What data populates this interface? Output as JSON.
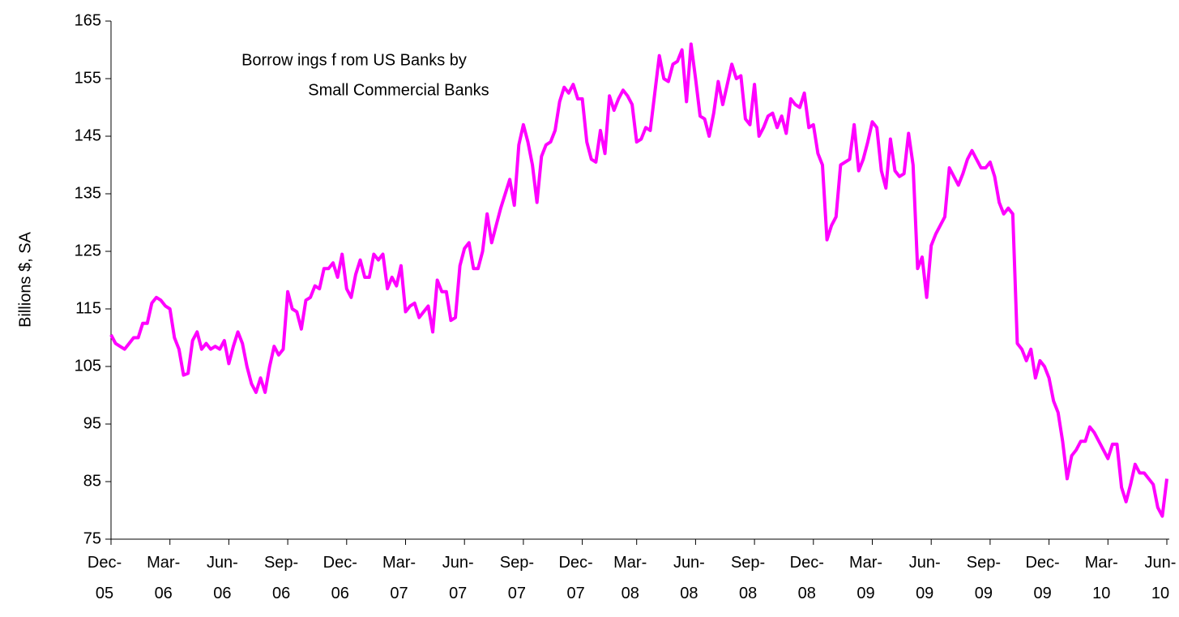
{
  "chart_data": {
    "type": "line",
    "title": [
      "Borrow ings f rom US Banks by",
      "Small Commercial Banks"
    ],
    "y_label": "Billions $, SA",
    "categories": [
      "Dec-05",
      null,
      null,
      null,
      null,
      null,
      null,
      null,
      null,
      null,
      null,
      null,
      null,
      "Mar-06",
      null,
      null,
      null,
      null,
      null,
      null,
      null,
      null,
      null,
      null,
      null,
      null,
      "Jun-06",
      null,
      null,
      null,
      null,
      null,
      null,
      null,
      null,
      null,
      null,
      null,
      null,
      "Sep-06",
      null,
      null,
      null,
      null,
      null,
      null,
      null,
      null,
      null,
      null,
      null,
      null,
      "Dec-06",
      null,
      null,
      null,
      null,
      null,
      null,
      null,
      null,
      null,
      null,
      null,
      null,
      "Mar-07",
      null,
      null,
      null,
      null,
      null,
      null,
      null,
      null,
      null,
      null,
      null,
      null,
      "Jun-07",
      null,
      null,
      null,
      null,
      null,
      null,
      null,
      null,
      null,
      null,
      null,
      null,
      "Sep-07",
      null,
      null,
      null,
      null,
      null,
      null,
      null,
      null,
      null,
      null,
      null,
      null,
      "Dec-07",
      null,
      null,
      null,
      null,
      null,
      null,
      null,
      null,
      null,
      null,
      null,
      "Mar-08",
      null,
      null,
      null,
      null,
      null,
      null,
      null,
      null,
      null,
      null,
      null,
      null,
      "Jun-08",
      null,
      null,
      null,
      null,
      null,
      null,
      null,
      null,
      null,
      null,
      null,
      null,
      "Sep-08",
      null,
      null,
      null,
      null,
      null,
      null,
      null,
      null,
      null,
      null,
      null,
      null,
      "Dec-08",
      null,
      null,
      null,
      null,
      null,
      null,
      null,
      null,
      null,
      null,
      null,
      null,
      "Mar-09",
      null,
      null,
      null,
      null,
      null,
      null,
      null,
      null,
      null,
      null,
      null,
      null,
      "Jun-09",
      null,
      null,
      null,
      null,
      null,
      null,
      null,
      null,
      null,
      null,
      null,
      null,
      "Sep-09",
      null,
      null,
      null,
      null,
      null,
      null,
      null,
      null,
      null,
      null,
      null,
      null,
      "Dec-09",
      null,
      null,
      null,
      null,
      null,
      null,
      null,
      null,
      null,
      null,
      null,
      null,
      "Mar-10",
      null,
      null,
      null,
      null,
      null,
      null,
      null,
      null,
      null,
      null,
      null,
      null,
      "Jun-10"
    ],
    "series": [
      {
        "name": "Borrowings",
        "color": "#ff00ff",
        "values": [
          110.5,
          109,
          108.5,
          108,
          109,
          110,
          110,
          112.5,
          112.5,
          116,
          117,
          116.5,
          115.5,
          115,
          110,
          108,
          103.5,
          103.8,
          109.5,
          111,
          108,
          109,
          108,
          108.5,
          108,
          109.5,
          105.5,
          108.5,
          111,
          109,
          105,
          102,
          100.5,
          103,
          100.5,
          105,
          108.5,
          107,
          108,
          118,
          115,
          114.5,
          111.5,
          116.5,
          117,
          119,
          118.5,
          122,
          122,
          123,
          120.5,
          124.5,
          118.5,
          117,
          121,
          123.5,
          120.5,
          120.5,
          124.5,
          123.5,
          124.5,
          118.5,
          120.5,
          119,
          122.5,
          114.5,
          115.5,
          116,
          113.5,
          114.5,
          115.5,
          111,
          120,
          118,
          118,
          113,
          113.5,
          122.5,
          125.5,
          126.5,
          122,
          122,
          125,
          131.5,
          126.5,
          129.5,
          132.5,
          135,
          137.5,
          133,
          143.5,
          147,
          144,
          140,
          133.5,
          141.5,
          143.5,
          144,
          146,
          151,
          153.5,
          152.5,
          154,
          151.5,
          151.5,
          144,
          141,
          140.5,
          146,
          142,
          152,
          149.5,
          151.5,
          153,
          152,
          150.5,
          144,
          144.5,
          146.5,
          146,
          152.5,
          159,
          155,
          154.5,
          157.5,
          158,
          160,
          151,
          161,
          155,
          148.5,
          148,
          145,
          149,
          154.5,
          150.5,
          154,
          157.5,
          155,
          155.5,
          148,
          147,
          154,
          145,
          146.5,
          148.5,
          149,
          146.5,
          148.5,
          145.5,
          151.5,
          150.5,
          150,
          152.5,
          146.5,
          147,
          142,
          140,
          127,
          129.5,
          131,
          140,
          140.5,
          141,
          147,
          139,
          141,
          144,
          147.5,
          146.5,
          139,
          136,
          144.5,
          139,
          138,
          138.5,
          145.5,
          140,
          122,
          124,
          117,
          126,
          128,
          129.5,
          131,
          139.5,
          138,
          136.5,
          138.5,
          141,
          142.5,
          141,
          139.5,
          139.5,
          140.5,
          138,
          133.5,
          131.5,
          132.5,
          131.5,
          109,
          108,
          106,
          108,
          103,
          106,
          105,
          103,
          99,
          97,
          92,
          85.5,
          89.5,
          90.5,
          92,
          92,
          94.5,
          93.5,
          92,
          90.5,
          89,
          91.5,
          91.5,
          84,
          81.5,
          84.5,
          88,
          86.5,
          86.5,
          85.5,
          84.5,
          80.5,
          79,
          85.5
        ]
      }
    ],
    "ylim": [
      75,
      165
    ],
    "yticks": [
      75,
      85,
      95,
      105,
      115,
      125,
      135,
      145,
      155,
      165
    ],
    "grid": false
  }
}
